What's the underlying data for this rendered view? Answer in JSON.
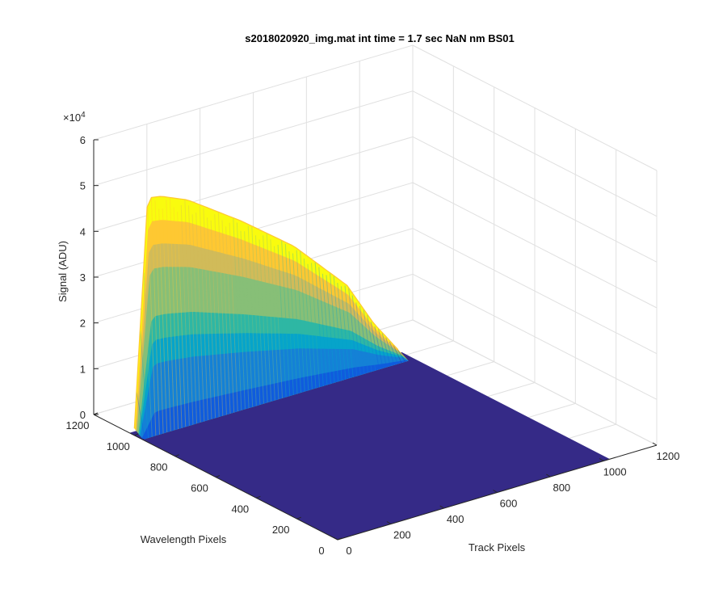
{
  "chart_data": {
    "type": "surface",
    "title": "s2018020920_img.mat int time = 1.7 sec  NaN nm BS01",
    "xlabel": "Track Pixels",
    "ylabel": "Wavelength Pixels",
    "zlabel": "Signal (ADU)",
    "z_exponent_label": "×10",
    "z_exponent_power": "4",
    "xlim": [
      0,
      1200
    ],
    "ylim": [
      0,
      1200
    ],
    "zlim": [
      0,
      60000
    ],
    "x_ticks": [
      "0",
      "200",
      "400",
      "600",
      "800",
      "1000",
      "1200"
    ],
    "y_ticks": [
      "0",
      "200",
      "400",
      "600",
      "800",
      "1000",
      "1200"
    ],
    "z_ticks": [
      "0",
      "1",
      "2",
      "3",
      "4",
      "5",
      "6"
    ],
    "grid": true,
    "colormap": "parula",
    "colors": [
      "#352a87",
      "#0f5cdd",
      "#1481d6",
      "#06a4ca",
      "#2eb7a4",
      "#87bf77",
      "#d1bb59",
      "#fec832",
      "#f9fb0e"
    ],
    "peak": {
      "track_range": [
        0,
        1024
      ],
      "wavelength_center": 1000,
      "profile_track": [
        0,
        50,
        100,
        200,
        300,
        400,
        500,
        600,
        700,
        800,
        900,
        1000
      ],
      "profile_signal": [
        1500,
        51000,
        50500,
        48000,
        44000,
        40000,
        35500,
        31000,
        25000,
        19000,
        9000,
        1000
      ]
    }
  }
}
